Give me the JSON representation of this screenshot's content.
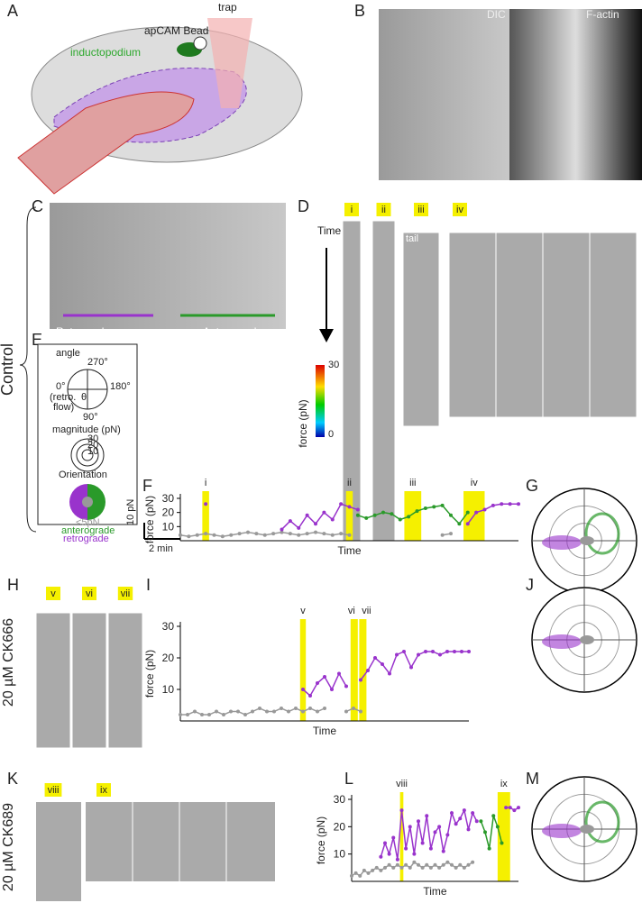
{
  "panel_labels": [
    "A",
    "B",
    "C",
    "D",
    "E",
    "F",
    "G",
    "H",
    "I",
    "J",
    "K",
    "L",
    "M"
  ],
  "a": {
    "bead": "apCAM Bead",
    "inductopodium": "inductopodium",
    "trap": "trap"
  },
  "b": {
    "dic": "DIC",
    "factin": "F-actin"
  },
  "c": {
    "retro": "Retrograde",
    "antero": "Anterograde"
  },
  "control": "Control",
  "ck666": "20 µM CK666",
  "ck689": "20 µM CK689",
  "d": {
    "time": "Time",
    "strips": [
      "i",
      "ii",
      "iii",
      "iv"
    ],
    "tail": "tail",
    "force": "force (pN)",
    "cmax": "30",
    "cmin": "0"
  },
  "e": {
    "angle": "angle",
    "a270": "270°",
    "a0": "0°",
    "retro1": "(retro.",
    "retro2": "flow)",
    "a180": "180°",
    "a90": "90°",
    "theta": "θ",
    "magnitude": "magnitude (pN)",
    "m30": "30",
    "m20": "20",
    "m10": "10",
    "orientation": "Orientation",
    "lt5": "<5pN",
    "anterograde": "anterograde",
    "retrograde": "retrograde"
  },
  "h_strips": [
    "v",
    "vi",
    "vii"
  ],
  "k_strips": [
    "viii",
    "ix"
  ],
  "scale": {
    "force": "10 pN",
    "time": "2 min"
  },
  "chart_data": [
    {
      "type": "line",
      "y_label": "force (pN)",
      "x_label": "Time",
      "xlim": [
        0,
        40
      ],
      "ylim": [
        0,
        30
      ],
      "yticks": [
        10,
        20,
        30
      ],
      "x": [
        0,
        1,
        2,
        3,
        4,
        5,
        6,
        7,
        8,
        9,
        10,
        11,
        12,
        13,
        14,
        15,
        16,
        17,
        18,
        19,
        20,
        21,
        22,
        23,
        24,
        25,
        26,
        27,
        28,
        29,
        30,
        31,
        32,
        33,
        34,
        35,
        36,
        37,
        38,
        39,
        40
      ],
      "bands": [
        {
          "label": "i",
          "x": [
            2.6,
            3.4
          ]
        },
        {
          "label": "ii",
          "x": [
            19.6,
            20.4
          ]
        },
        {
          "label": "iii",
          "x": [
            26.5,
            28.5
          ]
        },
        {
          "label": "iv",
          "x": [
            33.5,
            36
          ]
        }
      ],
      "series": [
        {
          "name": "<5pN",
          "color": "#999999",
          "values": [
            4,
            3,
            4,
            5,
            4,
            3,
            4,
            5,
            6,
            5,
            4,
            5,
            6,
            5,
            4,
            5,
            6,
            5,
            4,
            5,
            4,
            null,
            null,
            null,
            null,
            null,
            null,
            null,
            null,
            null,
            null,
            4,
            5,
            null,
            null,
            null,
            null,
            null,
            null,
            null,
            null
          ]
        },
        {
          "name": "retrograde",
          "color": "#9933cc",
          "values": [
            null,
            null,
            null,
            26,
            null,
            null,
            null,
            null,
            null,
            null,
            null,
            null,
            8,
            14,
            9,
            18,
            12,
            20,
            15,
            26,
            24,
            22,
            null,
            null,
            null,
            null,
            null,
            null,
            null,
            null,
            null,
            null,
            null,
            null,
            12,
            20,
            22,
            25,
            26,
            26,
            26
          ]
        },
        {
          "name": "anterograde",
          "color": "#2a9a2a",
          "values": [
            null,
            null,
            null,
            null,
            null,
            null,
            null,
            null,
            null,
            null,
            null,
            null,
            null,
            null,
            null,
            null,
            null,
            null,
            null,
            null,
            null,
            18,
            16,
            18,
            20,
            19,
            15,
            17,
            21,
            23,
            24,
            25,
            18,
            12,
            20,
            null,
            null,
            null,
            null,
            null,
            null
          ]
        }
      ]
    },
    {
      "type": "line",
      "y_label": "force (pN)",
      "x_label": "Time",
      "xlim": [
        0,
        40
      ],
      "ylim": [
        0,
        30
      ],
      "yticks": [
        10,
        20,
        30
      ],
      "x": [
        0,
        1,
        2,
        3,
        4,
        5,
        6,
        7,
        8,
        9,
        10,
        11,
        12,
        13,
        14,
        15,
        16,
        17,
        18,
        19,
        20,
        21,
        22,
        23,
        24,
        25,
        26,
        27,
        28,
        29,
        30,
        31,
        32,
        33,
        34,
        35,
        36,
        37,
        38,
        39,
        40
      ],
      "bands": [
        {
          "label": "v",
          "x": [
            16.6,
            17.4
          ]
        },
        {
          "label": "vi",
          "x": [
            23.6,
            24.6
          ]
        },
        {
          "label": "vii",
          "x": [
            24.8,
            25.8
          ]
        }
      ],
      "series": [
        {
          "name": "<5pN",
          "color": "#999999",
          "values": [
            2,
            2,
            3,
            2,
            2,
            3,
            2,
            3,
            3,
            2,
            3,
            4,
            3,
            3,
            4,
            3,
            4,
            3,
            4,
            3,
            4,
            null,
            null,
            3,
            4,
            3,
            null,
            null,
            null,
            null,
            null,
            null,
            null,
            null,
            null,
            null,
            null,
            null,
            null,
            null,
            null
          ]
        },
        {
          "name": "retrograde",
          "color": "#9933cc",
          "values": [
            null,
            null,
            null,
            null,
            null,
            null,
            null,
            null,
            null,
            null,
            null,
            null,
            null,
            null,
            null,
            null,
            null,
            10,
            8,
            12,
            14,
            10,
            15,
            11,
            null,
            13,
            16,
            20,
            18,
            15,
            21,
            22,
            17,
            21,
            22,
            22,
            21,
            22,
            22,
            22,
            22
          ]
        }
      ]
    },
    {
      "type": "line",
      "y_label": "force (pN)",
      "x_label": "Time",
      "xlim": [
        0,
        40
      ],
      "ylim": [
        0,
        30
      ],
      "yticks": [
        10,
        20,
        30
      ],
      "x": [
        0,
        1,
        2,
        3,
        4,
        5,
        6,
        7,
        8,
        9,
        10,
        11,
        12,
        13,
        14,
        15,
        16,
        17,
        18,
        19,
        20,
        21,
        22,
        23,
        24,
        25,
        26,
        27,
        28,
        29,
        30,
        31,
        32,
        33,
        34,
        35,
        36,
        37,
        38,
        39,
        40
      ],
      "bands": [
        {
          "label": "viii",
          "x": [
            11.6,
            12.4
          ]
        },
        {
          "label": "ix",
          "x": [
            35,
            38
          ]
        }
      ],
      "series": [
        {
          "name": "<5pN",
          "color": "#999999",
          "values": [
            2,
            3,
            2,
            4,
            3,
            4,
            5,
            4,
            5,
            6,
            5,
            6,
            5,
            6,
            5,
            7,
            6,
            5,
            6,
            5,
            6,
            5,
            6,
            7,
            6,
            5,
            6,
            5,
            6,
            7,
            null,
            null,
            null,
            null,
            null,
            null,
            null,
            null,
            null,
            null,
            null
          ]
        },
        {
          "name": "retrograde",
          "color": "#9933cc",
          "values": [
            null,
            null,
            null,
            null,
            null,
            null,
            null,
            9,
            14,
            10,
            16,
            8,
            26,
            12,
            20,
            10,
            22,
            14,
            24,
            12,
            18,
            20,
            11,
            17,
            25,
            21,
            23,
            26,
            19,
            25,
            22,
            null,
            null,
            null,
            null,
            null,
            null,
            27,
            27,
            26,
            27
          ]
        },
        {
          "name": "anterograde",
          "color": "#2a9a2a",
          "values": [
            null,
            null,
            null,
            null,
            null,
            null,
            null,
            null,
            null,
            null,
            null,
            null,
            null,
            null,
            null,
            null,
            null,
            null,
            null,
            null,
            null,
            null,
            null,
            null,
            null,
            null,
            null,
            null,
            null,
            null,
            null,
            22,
            18,
            12,
            24,
            20,
            14,
            null,
            null,
            null,
            null
          ]
        }
      ]
    }
  ]
}
